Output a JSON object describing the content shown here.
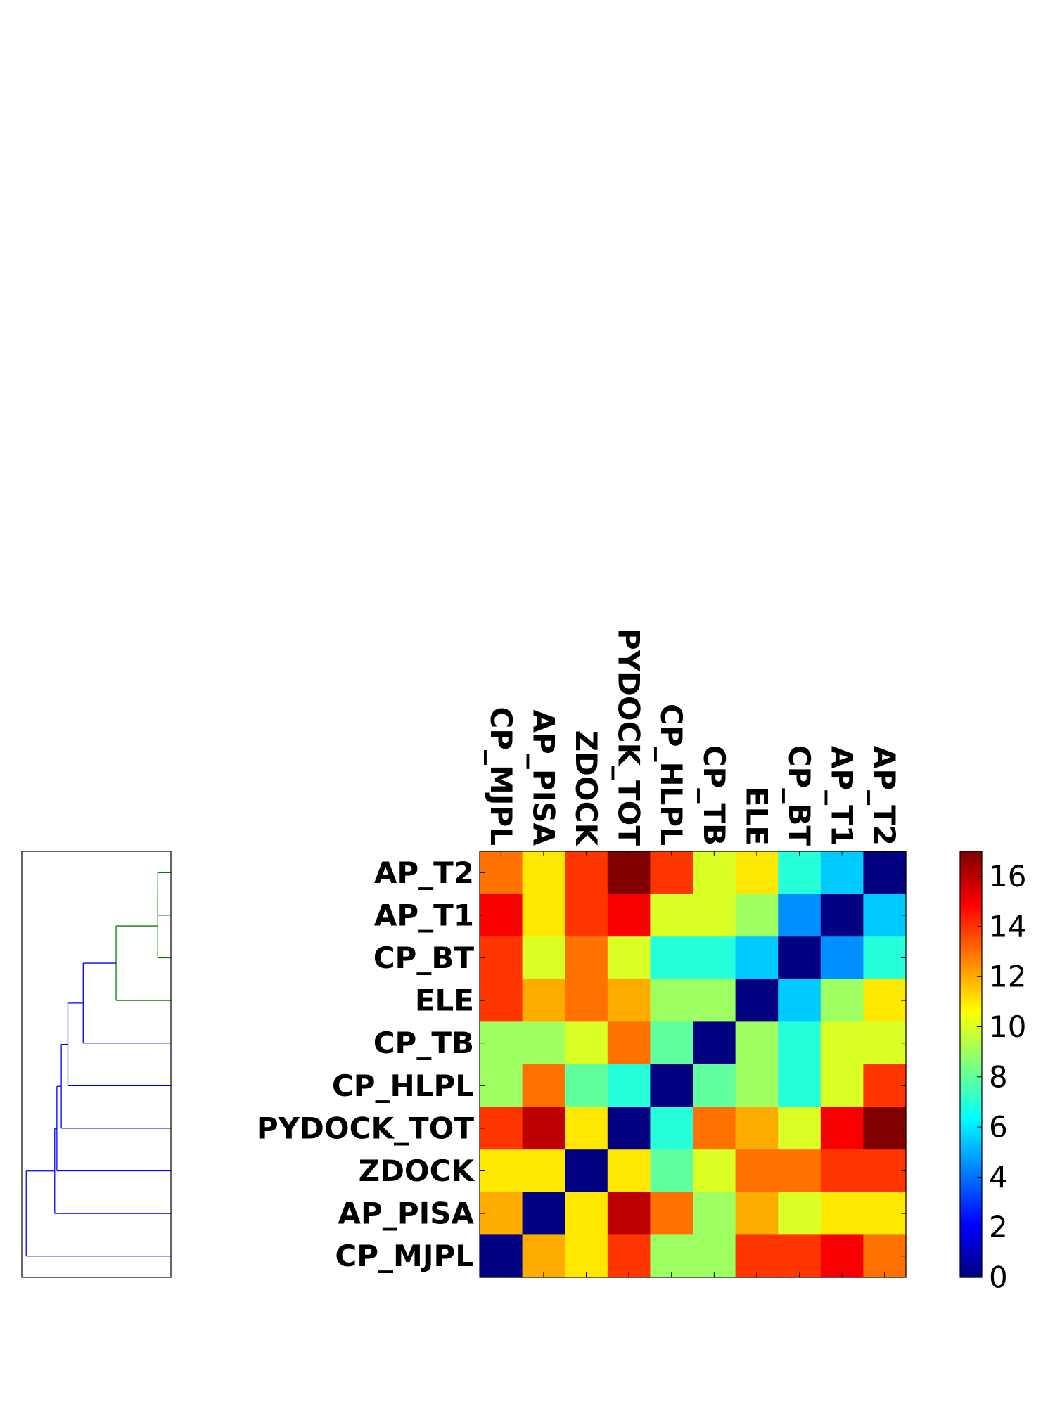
{
  "chart_data": {
    "type": "heatmap",
    "title": "",
    "xlabel": "",
    "ylabel": "",
    "columns": [
      "CP_MJPL",
      "AP_PISA",
      "ZDOCK",
      "PYDOCK_TOT",
      "CP_HLPL",
      "CP_TB",
      "ELE",
      "CP_BT",
      "AP_T1",
      "AP_T2"
    ],
    "rows": [
      "AP_T2",
      "AP_T1",
      "CP_BT",
      "ELE",
      "CP_TB",
      "CP_HLPL",
      "PYDOCK_TOT",
      "ZDOCK",
      "AP_PISA",
      "CP_MJPL"
    ],
    "values": [
      [
        13,
        11,
        14,
        17,
        14,
        10,
        11,
        7,
        5.5,
        0
      ],
      [
        15,
        11,
        14,
        15,
        10,
        10,
        9,
        4.5,
        0,
        5.5
      ],
      [
        14,
        10,
        13,
        10,
        7,
        7,
        5.5,
        0,
        4.5,
        7
      ],
      [
        14,
        12,
        13,
        12,
        9,
        9,
        0,
        5.5,
        9,
        11
      ],
      [
        9,
        9,
        10,
        13,
        8,
        0,
        9,
        7,
        10,
        10
      ],
      [
        9,
        13,
        8,
        7,
        0,
        8,
        9,
        7,
        10,
        14
      ],
      [
        14,
        16,
        11,
        0,
        7,
        13,
        12,
        10,
        15,
        17
      ],
      [
        11,
        11,
        0,
        11,
        8,
        10,
        13,
        13,
        14,
        14
      ],
      [
        12,
        0,
        11,
        16,
        13,
        9,
        12,
        10,
        11,
        11
      ],
      [
        0,
        12,
        11,
        14,
        9,
        9,
        14,
        14,
        15,
        13
      ]
    ],
    "colorbar": {
      "colormap": "jet",
      "vmin": 0,
      "vmax": 17,
      "ticks": [
        0,
        2,
        4,
        6,
        8,
        10,
        12,
        14,
        16
      ]
    },
    "dendrogram": {
      "orientation": "left",
      "leaves_bottom_to_top": [
        "CP_MJPL",
        "AP_PISA",
        "ZDOCK",
        "PYDOCK_TOT",
        "CP_HLPL",
        "CP_TB",
        "ELE",
        "CP_BT",
        "AP_T1",
        "AP_T2"
      ],
      "merges": [
        {
          "a": 8,
          "b": 9,
          "distance": 0.03,
          "color": "#008000"
        },
        {
          "a": 7,
          "b": 10,
          "distance": 0.03,
          "color": "#008000"
        },
        {
          "a": 6,
          "b": 11,
          "distance": 0.125,
          "color": "#008000"
        },
        {
          "a": 5,
          "b": 12,
          "distance": 0.2,
          "color": "#0000ff"
        },
        {
          "a": 4,
          "b": 13,
          "distance": 0.235,
          "color": "#0000ff"
        },
        {
          "a": 3,
          "b": 14,
          "distance": 0.25,
          "color": "#0000ff"
        },
        {
          "a": 2,
          "b": 15,
          "distance": 0.26,
          "color": "#0000ff"
        },
        {
          "a": 1,
          "b": 16,
          "distance": 0.265,
          "color": "#0000ff"
        },
        {
          "a": 0,
          "b": 17,
          "distance": 0.33,
          "color": "#0000ff"
        }
      ]
    }
  }
}
